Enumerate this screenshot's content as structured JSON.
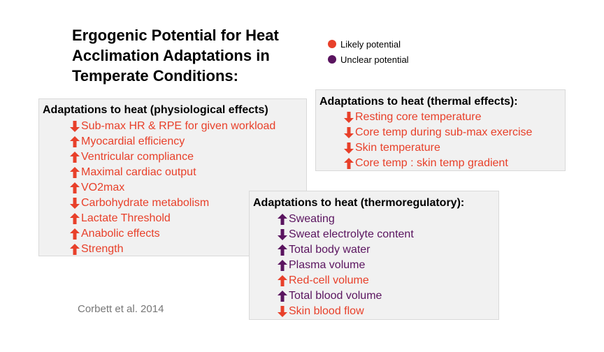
{
  "title": "Ergogenic Potential for Heat Acclimation Adaptations in Temperate Conditions:",
  "legend": [
    {
      "label": "Likely potential",
      "color": "#e8402a"
    },
    {
      "label": "Unclear potential",
      "color": "#5a145f"
    }
  ],
  "colors": {
    "likely": "#e8402a",
    "unclear": "#5a145f"
  },
  "boxes": {
    "physiological": {
      "title": "Adaptations to heat (physiological effects)",
      "items": [
        {
          "text": "Sub-max HR & RPE for given workload",
          "dir": "down",
          "potential": "likely"
        },
        {
          "text": "Myocardial efficiency",
          "dir": "up",
          "potential": "likely"
        },
        {
          "text": "Ventricular compliance",
          "dir": "up",
          "potential": "likely"
        },
        {
          "text": "Maximal cardiac output",
          "dir": "up",
          "potential": "likely"
        },
        {
          "text": "VO2max",
          "dir": "up",
          "potential": "likely"
        },
        {
          "text": "Carbohydrate metabolism",
          "dir": "down",
          "potential": "likely"
        },
        {
          "text": "Lactate Threshold",
          "dir": "up",
          "potential": "likely"
        },
        {
          "text": "Anabolic effects",
          "dir": "up",
          "potential": "likely"
        },
        {
          "text": "Strength",
          "dir": "up",
          "potential": "likely"
        }
      ]
    },
    "thermal": {
      "title": "Adaptations to heat (thermal effects):",
      "items": [
        {
          "text": "Resting core temperature",
          "dir": "down",
          "potential": "likely"
        },
        {
          "text": "Core temp during sub-max exercise",
          "dir": "down",
          "potential": "likely"
        },
        {
          "text": "Skin temperature",
          "dir": "down",
          "potential": "likely"
        },
        {
          "text": "Core temp : skin temp gradient",
          "dir": "up",
          "potential": "likely"
        }
      ]
    },
    "thermoregulatory": {
      "title": "Adaptations to heat (thermoregulatory):",
      "items": [
        {
          "text": "Sweating",
          "dir": "up",
          "potential": "unclear"
        },
        {
          "text": "Sweat electrolyte content",
          "dir": "down",
          "potential": "unclear"
        },
        {
          "text": "Total body water",
          "dir": "up",
          "potential": "unclear"
        },
        {
          "text": "Plasma volume",
          "dir": "up",
          "potential": "unclear"
        },
        {
          "text": "Red-cell volume",
          "dir": "up",
          "potential": "likely"
        },
        {
          "text": "Total blood volume",
          "dir": "up",
          "potential": "unclear"
        },
        {
          "text": "Skin blood flow",
          "dir": "down",
          "potential": "likely"
        }
      ]
    }
  },
  "citation": "Corbett et al. 2014"
}
